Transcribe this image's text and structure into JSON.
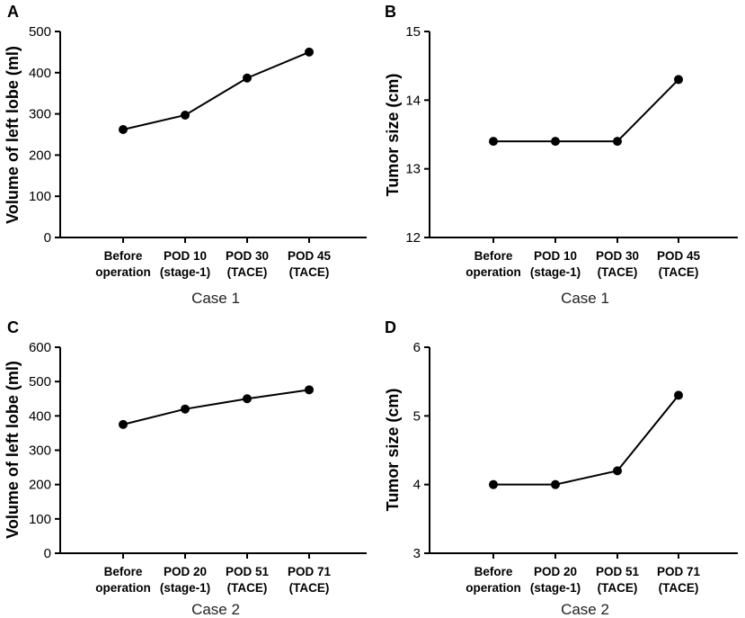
{
  "chart_data": [
    {
      "panel": "A",
      "type": "line",
      "title": "",
      "ylabel": "Volume of left lobe (ml)",
      "xlabel": "Case 1",
      "categories": [
        [
          "Before",
          "operation"
        ],
        [
          "POD 10",
          "(stage-1)"
        ],
        [
          "POD 30",
          "(TACE)"
        ],
        [
          "POD 45",
          "(TACE)"
        ]
      ],
      "values": [
        262,
        297,
        387,
        450
      ],
      "ylim": [
        0,
        500
      ],
      "yticks": [
        0,
        100,
        200,
        300,
        400,
        500
      ],
      "grid": false
    },
    {
      "panel": "B",
      "type": "line",
      "title": "",
      "ylabel": "Tumor size (cm)",
      "xlabel": "Case 1",
      "categories": [
        [
          "Before",
          "operation"
        ],
        [
          "POD 10",
          "(stage-1)"
        ],
        [
          "POD 30",
          "(TACE)"
        ],
        [
          "POD 45",
          "(TACE)"
        ]
      ],
      "values": [
        13.4,
        13.4,
        13.4,
        14.3
      ],
      "ylim": [
        12,
        15
      ],
      "yticks": [
        12,
        13,
        14,
        15
      ],
      "grid": false
    },
    {
      "panel": "C",
      "type": "line",
      "title": "",
      "ylabel": "Volume of left lobe (ml)",
      "xlabel": "Case 2",
      "categories": [
        [
          "Before",
          "operation"
        ],
        [
          "POD 20",
          "(stage-1)"
        ],
        [
          "POD 51",
          "(TACE)"
        ],
        [
          "POD 71",
          "(TACE)"
        ]
      ],
      "values": [
        375,
        420,
        450,
        476
      ],
      "ylim": [
        0,
        600
      ],
      "yticks": [
        0,
        100,
        200,
        300,
        400,
        500,
        600
      ],
      "grid": false
    },
    {
      "panel": "D",
      "type": "line",
      "title": "",
      "ylabel": "Tumor size (cm)",
      "xlabel": "Case 2",
      "categories": [
        [
          "Before",
          "operation"
        ],
        [
          "POD 20",
          "(stage-1)"
        ],
        [
          "POD 51",
          "(TACE)"
        ],
        [
          "POD 71",
          "(TACE)"
        ]
      ],
      "values": [
        4.0,
        4.0,
        4.2,
        5.3
      ],
      "ylim": [
        3,
        6
      ],
      "yticks": [
        3,
        4,
        5,
        6
      ],
      "grid": false
    }
  ]
}
